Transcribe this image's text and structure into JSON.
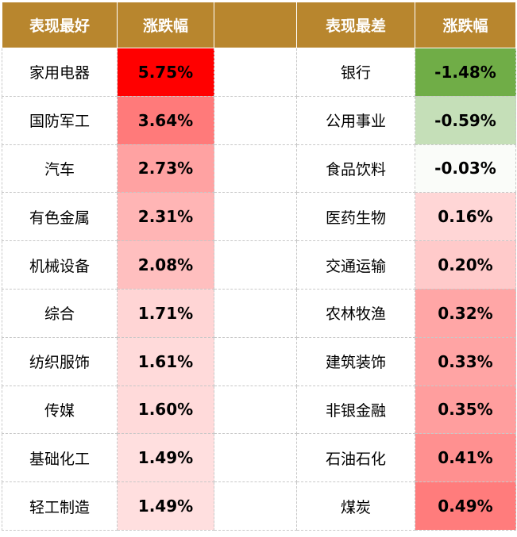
{
  "headers": {
    "best_label": "表现最好",
    "best_change": "涨跌幅",
    "worst_label": "表现最差",
    "worst_change": "涨跌幅"
  },
  "colors": {
    "header_bg": "#B8862E",
    "header_text": "#FFFFFF",
    "strong_red": "#FF0000",
    "strong_green": "#70AD47"
  },
  "rows": [
    {
      "best_name": "家用电器",
      "best_change": "5.75%",
      "best_color": "#FF0000",
      "worst_name": "银行",
      "worst_change": "-1.48%",
      "worst_color": "#70AD47"
    },
    {
      "best_name": "国防军工",
      "best_change": "3.64%",
      "best_color": "#FF7A7A",
      "worst_name": "公用事业",
      "worst_change": "-0.59%",
      "worst_color": "#C5DFB8"
    },
    {
      "best_name": "汽车",
      "best_change": "2.73%",
      "best_color": "#FFA2A2",
      "worst_name": "食品饮料",
      "worst_change": "-0.03%",
      "worst_color": "#FAFCF9"
    },
    {
      "best_name": "有色金属",
      "best_change": "2.31%",
      "best_color": "#FFB5B5",
      "worst_name": "医药生物",
      "worst_change": "0.16%",
      "worst_color": "#FFD6D6"
    },
    {
      "best_name": "机械设备",
      "best_change": "2.08%",
      "best_color": "#FFBFBF",
      "worst_name": "交通运输",
      "worst_change": "0.20%",
      "worst_color": "#FFCACA"
    },
    {
      "best_name": "综合",
      "best_change": "1.71%",
      "best_color": "#FFD5D5",
      "worst_name": "农林牧渔",
      "worst_change": "0.32%",
      "worst_color": "#FFA6A6"
    },
    {
      "best_name": "纺织服饰",
      "best_change": "1.61%",
      "best_color": "#FFDADA",
      "worst_name": "建筑装饰",
      "worst_change": "0.33%",
      "worst_color": "#FFA4A4"
    },
    {
      "best_name": "传媒",
      "best_change": "1.60%",
      "best_color": "#FFDADA",
      "worst_name": "非银金融",
      "worst_change": "0.35%",
      "worst_color": "#FF9E9E"
    },
    {
      "best_name": "基础化工",
      "best_change": "1.49%",
      "best_color": "#FFDFDF",
      "worst_name": "石油石化",
      "worst_change": "0.41%",
      "worst_color": "#FF9090"
    },
    {
      "best_name": "轻工制造",
      "best_change": "1.49%",
      "best_color": "#FFDFDF",
      "worst_name": "煤炭",
      "worst_change": "0.49%",
      "worst_color": "#FF7C7C"
    }
  ]
}
